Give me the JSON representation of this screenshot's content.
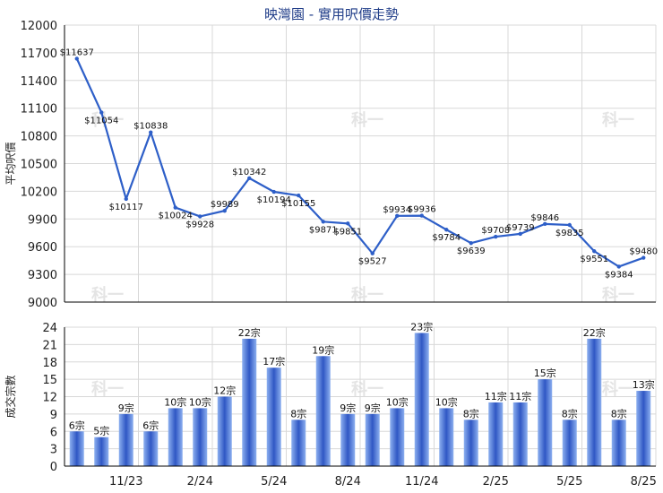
{
  "title": "映灣園 - 實用呎價走勢",
  "watermark": "科一",
  "colors": {
    "line": "#2e5fc8",
    "bar_light": "#8db0f0",
    "bar_dark": "#2f57c4",
    "grid": "#d8d8d8",
    "axis": "#000000",
    "title": "#1f3c88"
  },
  "chart_data": [
    {
      "type": "line",
      "ylabel": "平均呎價",
      "ylim": [
        9000,
        12000
      ],
      "yticks": [
        9000,
        9300,
        9600,
        9900,
        10200,
        10500,
        10800,
        11100,
        11400,
        11700,
        12000
      ],
      "grid": true,
      "values": [
        11637,
        11054,
        10117,
        10838,
        10024,
        9928,
        9989,
        10342,
        10194,
        10155,
        9871,
        9851,
        9527,
        9934,
        9936,
        9784,
        9639,
        9708,
        9739,
        9846,
        9835,
        9551,
        9384,
        9480
      ],
      "labels": [
        "$11637",
        "$11054",
        "$10117",
        "$10838",
        "$10024",
        "$9928",
        "$9989",
        "$10342",
        "$10194",
        "$10155",
        "$9871",
        "$9851",
        "$9527",
        "$9934",
        "$9936",
        "$9784",
        "$9639",
        "$9708",
        "$9739",
        "$9846",
        "$9835",
        "$9551",
        "$9384",
        "$9480"
      ]
    },
    {
      "type": "bar",
      "ylabel": "成交宗數",
      "ylim": [
        0,
        24
      ],
      "yticks": [
        0,
        3,
        6,
        9,
        12,
        15,
        18,
        21,
        24
      ],
      "grid": true,
      "values": [
        6,
        5,
        9,
        6,
        10,
        10,
        12,
        22,
        17,
        8,
        19,
        9,
        9,
        10,
        23,
        10,
        8,
        11,
        11,
        15,
        8,
        22,
        8,
        13
      ],
      "labels": [
        "6宗",
        "5宗",
        "9宗",
        "6宗",
        "10宗",
        "10宗",
        "12宗",
        "22宗",
        "17宗",
        "8宗",
        "19宗",
        "9宗",
        "9宗",
        "10宗",
        "23宗",
        "10宗",
        "8宗",
        "11宗",
        "11宗",
        "15宗",
        "8宗",
        "22宗",
        "8宗",
        "13宗"
      ],
      "xticks": [
        {
          "label": "11/23",
          "index": 2
        },
        {
          "label": "2/24",
          "index": 5
        },
        {
          "label": "5/24",
          "index": 8
        },
        {
          "label": "8/24",
          "index": 11
        },
        {
          "label": "11/24",
          "index": 14
        },
        {
          "label": "2/25",
          "index": 17
        },
        {
          "label": "5/25",
          "index": 20
        },
        {
          "label": "8/25",
          "index": 23
        }
      ]
    }
  ]
}
